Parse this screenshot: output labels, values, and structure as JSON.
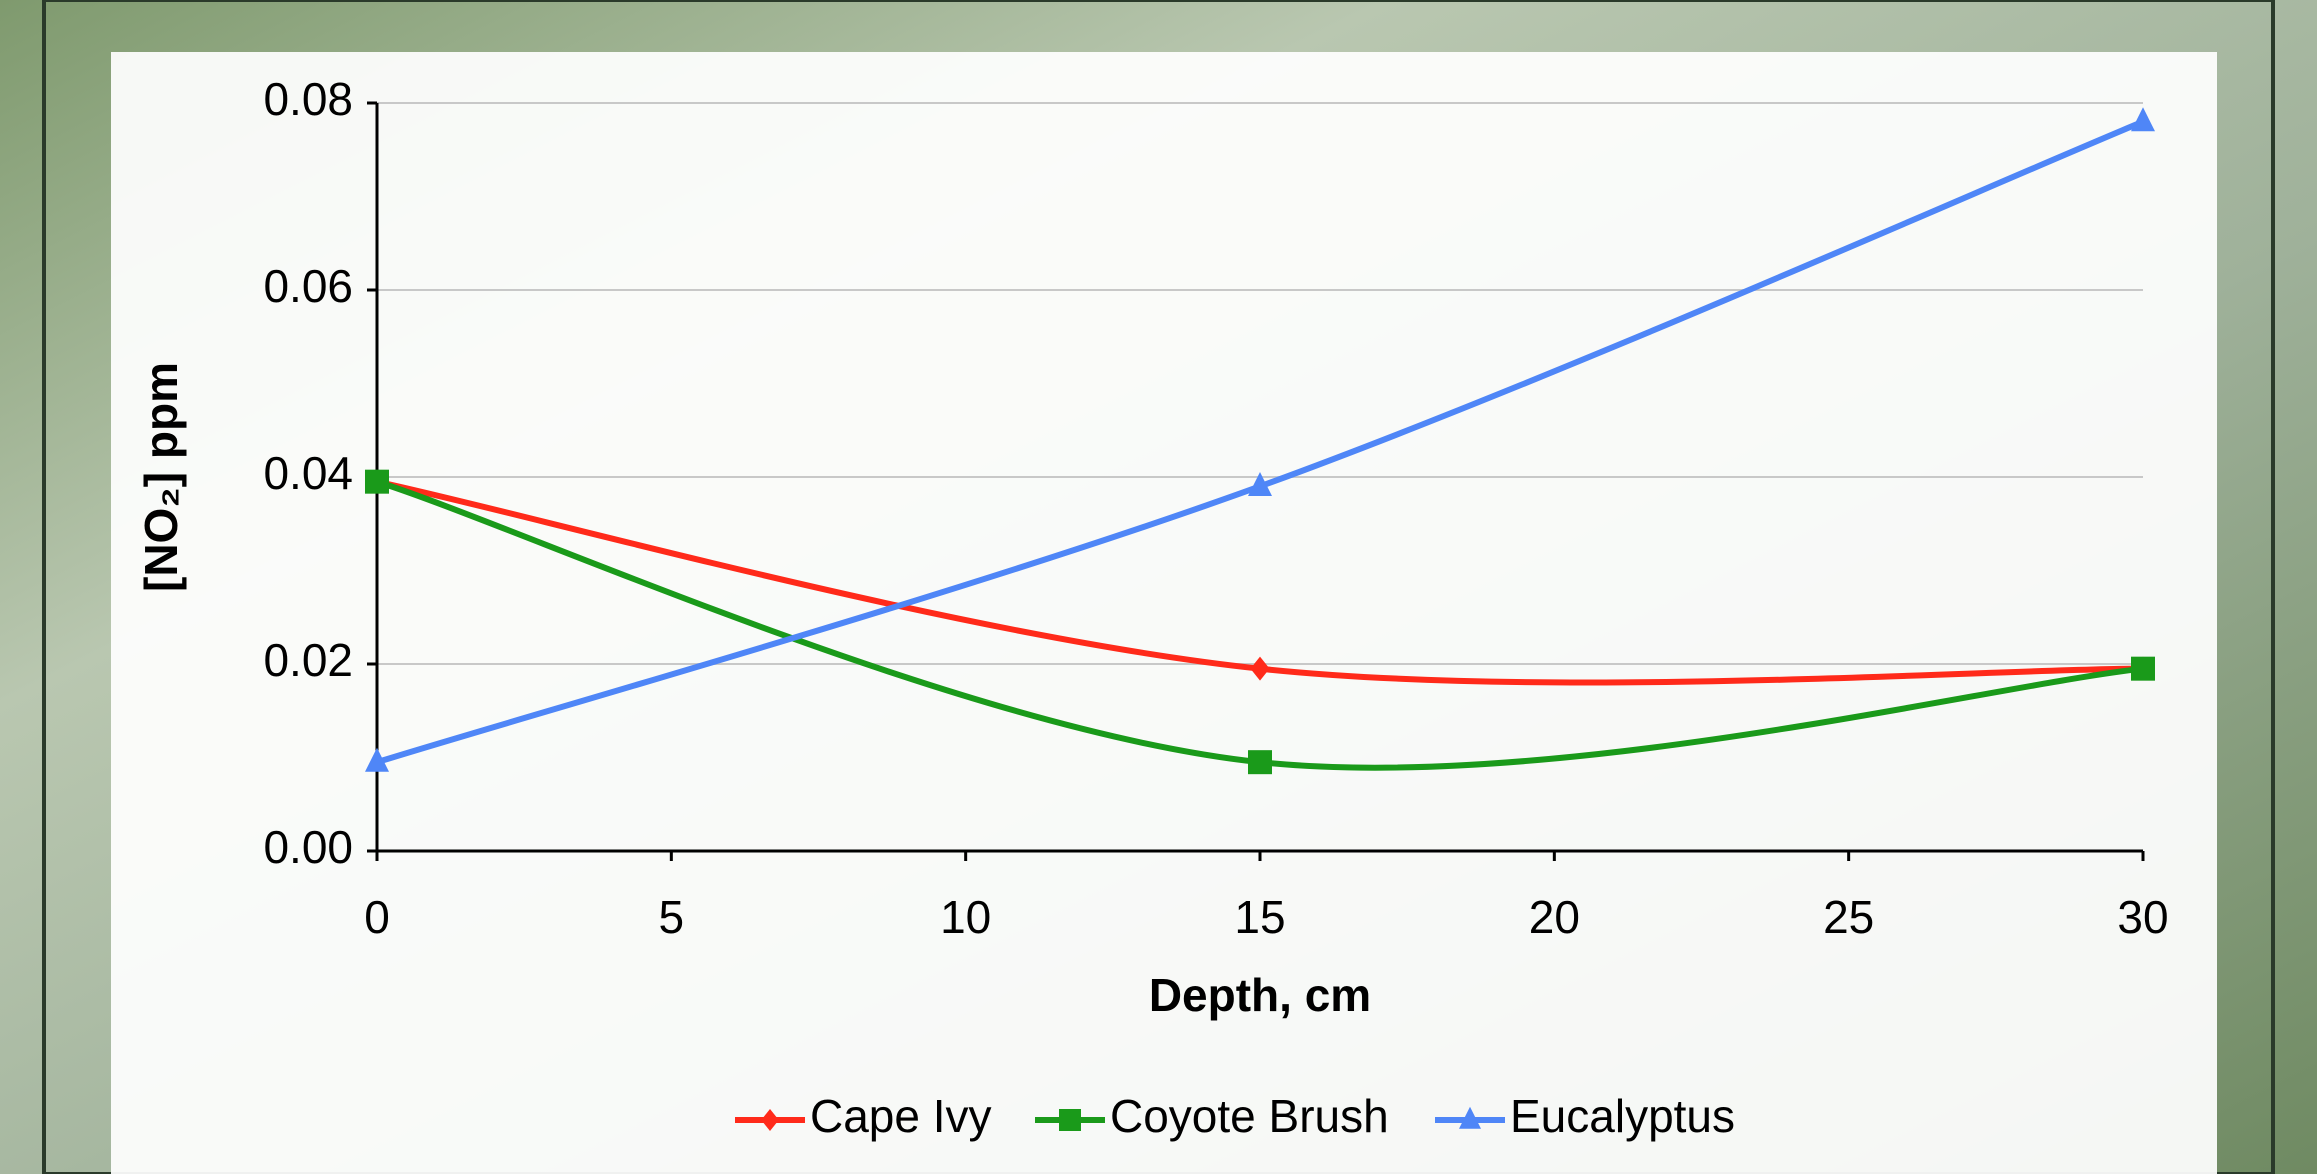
{
  "chart_data": {
    "type": "line",
    "smooth": true,
    "x_label": "Depth, cm",
    "y_label": "[NO₂] ppm",
    "x": [
      0,
      15,
      30
    ],
    "series": [
      {
        "name": "Cape Ivy",
        "color": "#ff2a1a",
        "marker": "diamond",
        "values": [
          0.0395,
          0.0195,
          0.0195
        ]
      },
      {
        "name": "Coyote Brush",
        "color": "#1a9a1a",
        "marker": "square",
        "values": [
          0.0395,
          0.0095,
          0.0195
        ]
      },
      {
        "name": "Eucalyptus",
        "color": "#4f86f7",
        "marker": "triangle",
        "values": [
          0.0095,
          0.039,
          0.078
        ]
      }
    ],
    "xlim": [
      0,
      30
    ],
    "xticks": [
      0,
      5,
      10,
      15,
      20,
      25,
      30
    ],
    "ylim": [
      0,
      0.08
    ],
    "yticks": [
      {
        "value": 0,
        "label": "0.00"
      },
      {
        "value": 0.02,
        "label": "0.02"
      },
      {
        "value": 0.04,
        "label": "0.04"
      },
      {
        "value": 0.06,
        "label": "0.06"
      },
      {
        "value": 0.08,
        "label": "0.08"
      }
    ],
    "grid": true,
    "legend": "bottom"
  }
}
